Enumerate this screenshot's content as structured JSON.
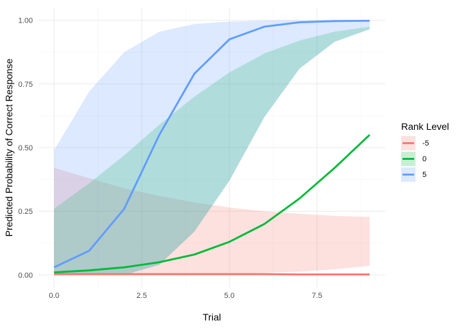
{
  "chart_data": {
    "type": "line",
    "title": "",
    "xlabel": "Trial",
    "ylabel": "Predicted Probability of Correct Response",
    "xlim": [
      -0.45,
      9.45
    ],
    "ylim": [
      -0.05,
      1.05
    ],
    "x_ticks": [
      0.0,
      2.5,
      5.0,
      7.5
    ],
    "x_tick_labels": [
      "0.0",
      "2.5",
      "5.0",
      "7.5"
    ],
    "y_ticks": [
      0.0,
      0.25,
      0.5,
      0.75,
      1.0
    ],
    "y_tick_labels": [
      "0.00",
      "0.25",
      "0.50",
      "0.75",
      "1.00"
    ],
    "grid": true,
    "legend": {
      "title": "Rank Level",
      "placement": "right"
    },
    "x": [
      0,
      1,
      2,
      3,
      4,
      5,
      6,
      7,
      8,
      9
    ],
    "series": [
      {
        "name": "-5",
        "color": "#F8766D",
        "values": [
          0.003,
          0.003,
          0.003,
          0.003,
          0.003,
          0.003,
          0.003,
          0.002,
          0.002,
          0.002
        ],
        "lower": [
          0.0,
          0.0,
          0.0,
          0.001,
          0.002,
          0.004,
          0.008,
          0.013,
          0.022,
          0.036
        ],
        "upper": [
          0.42,
          0.38,
          0.34,
          0.31,
          0.285,
          0.265,
          0.25,
          0.24,
          0.232,
          0.228
        ]
      },
      {
        "name": "0",
        "color": "#00BA38",
        "values": [
          0.01,
          0.018,
          0.03,
          0.05,
          0.08,
          0.13,
          0.2,
          0.3,
          0.42,
          0.55
        ],
        "lower": [
          0.0,
          0.0,
          0.0,
          0.04,
          0.17,
          0.37,
          0.62,
          0.81,
          0.915,
          0.965
        ],
        "upper": [
          0.26,
          0.36,
          0.47,
          0.59,
          0.7,
          0.795,
          0.87,
          0.92,
          0.955,
          0.975
        ]
      },
      {
        "name": "5",
        "color": "#619CFF",
        "values": [
          0.03,
          0.095,
          0.26,
          0.55,
          0.79,
          0.925,
          0.975,
          0.992,
          0.997,
          0.998
        ],
        "lower": [
          0.0,
          0.0,
          0.0,
          0.04,
          0.17,
          0.37,
          0.62,
          0.81,
          0.915,
          0.965
        ],
        "upper": [
          0.49,
          0.72,
          0.875,
          0.955,
          0.985,
          0.995,
          0.999,
          1.0,
          1.0,
          1.0
        ]
      }
    ]
  }
}
